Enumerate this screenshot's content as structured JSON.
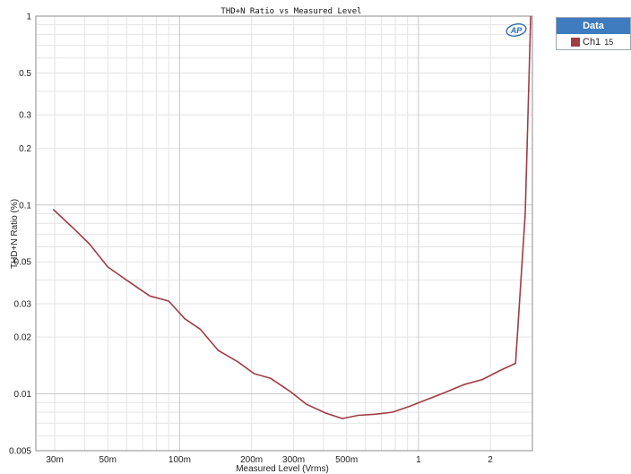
{
  "chart_data": {
    "type": "line",
    "title": "THD+N Ratio vs Measured Level",
    "xlabel": "Measured Level (Vrms)",
    "ylabel": "THD+N Ratio (%)",
    "xscale": "log",
    "yscale": "log",
    "xlim": [
      0.025,
      3.0
    ],
    "ylim": [
      0.005,
      1
    ],
    "grid": true,
    "x_ticks": [
      {
        "value": 0.03,
        "label": "30m"
      },
      {
        "value": 0.05,
        "label": "50m"
      },
      {
        "value": 0.1,
        "label": "100m"
      },
      {
        "value": 0.2,
        "label": "200m"
      },
      {
        "value": 0.3,
        "label": "300m"
      },
      {
        "value": 0.5,
        "label": "500m"
      },
      {
        "value": 1,
        "label": "1"
      },
      {
        "value": 2,
        "label": "2"
      }
    ],
    "y_ticks": [
      {
        "value": 1,
        "label": "1"
      },
      {
        "value": 0.5,
        "label": "0.5"
      },
      {
        "value": 0.3,
        "label": "0.3"
      },
      {
        "value": 0.2,
        "label": "0.2"
      },
      {
        "value": 0.1,
        "label": "0.1"
      },
      {
        "value": 0.05,
        "label": "0.05"
      },
      {
        "value": 0.03,
        "label": "0.03"
      },
      {
        "value": 0.02,
        "label": "0.02"
      },
      {
        "value": 0.01,
        "label": "0.01"
      },
      {
        "value": 0.005,
        "label": "0.005"
      }
    ],
    "series": [
      {
        "name": "Ch1",
        "color": "#a03c45",
        "x": [
          0.0295,
          0.036,
          0.042,
          0.05,
          0.06,
          0.075,
          0.09,
          0.105,
          0.122,
          0.145,
          0.175,
          0.205,
          0.24,
          0.29,
          0.34,
          0.41,
          0.48,
          0.56,
          0.66,
          0.78,
          0.92,
          1.1,
          1.3,
          1.55,
          1.85,
          2.2,
          2.55,
          2.8,
          2.95
        ],
        "y": [
          0.095,
          0.075,
          0.062,
          0.047,
          0.04,
          0.033,
          0.031,
          0.025,
          0.022,
          0.017,
          0.0148,
          0.0128,
          0.0121,
          0.0103,
          0.0088,
          0.0079,
          0.0074,
          0.0077,
          0.0078,
          0.008,
          0.0086,
          0.0094,
          0.0102,
          0.0112,
          0.0119,
          0.0133,
          0.0145,
          0.09,
          1.0
        ]
      }
    ]
  },
  "legend": {
    "header": "Data",
    "items": [
      {
        "label": "Ch1",
        "number": "15",
        "color": "#a03c45"
      }
    ]
  },
  "logo_text": "AP"
}
